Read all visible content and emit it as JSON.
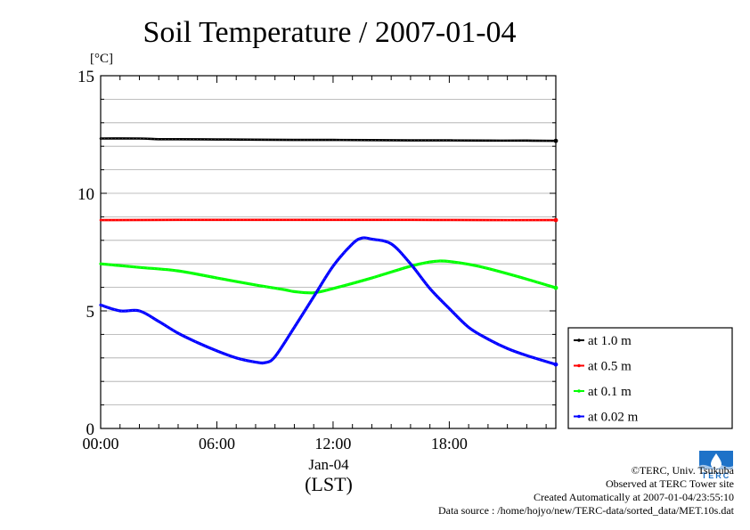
{
  "chart_data": {
    "type": "line",
    "title": "Soil Temperature / 2007-01-04",
    "ylabel": "[°C]",
    "xlabel": "(LST)",
    "date_label": "Jan-04",
    "ylim": [
      0,
      15
    ],
    "xlim": [
      0,
      23.5
    ],
    "yticks": [
      "0",
      "5",
      "10",
      "15"
    ],
    "xticks": [
      {
        "value": 0,
        "label": "00:00"
      },
      {
        "value": 6,
        "label": "06:00"
      },
      {
        "value": 12,
        "label": "12:00"
      },
      {
        "value": 18,
        "label": "18:00"
      }
    ],
    "grid": true,
    "legend_position": "right-bottom",
    "series": [
      {
        "name": "at 1.0 m",
        "color": "#000000",
        "x": [
          0,
          2,
          3,
          4,
          6,
          8,
          10,
          12,
          14,
          16,
          18,
          20,
          22,
          23.5
        ],
        "y": [
          12.33,
          12.33,
          12.3,
          12.3,
          12.29,
          12.28,
          12.27,
          12.27,
          12.26,
          12.25,
          12.25,
          12.24,
          12.24,
          12.23
        ]
      },
      {
        "name": "at 0.5 m",
        "color": "#ff0000",
        "x": [
          0,
          4,
          8,
          12,
          16,
          20,
          23.5
        ],
        "y": [
          8.86,
          8.87,
          8.87,
          8.87,
          8.87,
          8.86,
          8.86
        ]
      },
      {
        "name": "at 0.1 m",
        "color": "#00ff00",
        "x": [
          0,
          2,
          4,
          6,
          8,
          9.5,
          10,
          11,
          12,
          14,
          16,
          17,
          17.5,
          18,
          19,
          20,
          22,
          23.5
        ],
        "y": [
          7.0,
          6.85,
          6.7,
          6.4,
          6.1,
          5.9,
          5.82,
          5.77,
          5.95,
          6.4,
          6.9,
          7.08,
          7.12,
          7.1,
          6.98,
          6.8,
          6.35,
          5.98
        ]
      },
      {
        "name": "at 0.02 m",
        "color": "#0000ff",
        "x": [
          0,
          1,
          2,
          3,
          4,
          5,
          6,
          7,
          8,
          8.5,
          9,
          10,
          11,
          12,
          13,
          13.5,
          14,
          15,
          16,
          17,
          18,
          19,
          20,
          21,
          22,
          23.5
        ],
        "y": [
          5.25,
          5.0,
          5.0,
          4.55,
          4.05,
          3.65,
          3.3,
          3.0,
          2.82,
          2.8,
          3.05,
          4.3,
          5.6,
          6.9,
          7.85,
          8.1,
          8.05,
          7.85,
          7.0,
          5.95,
          5.1,
          4.3,
          3.8,
          3.4,
          3.1,
          2.72
        ]
      }
    ]
  },
  "credits": {
    "copyright": "©TERC, Univ. Tsukuba",
    "observed": "Observed at TERC Tower site",
    "created": "Created Automatically at 2007-01-04/23:55:10",
    "source": "Data source : /home/hojyo/new/TERC-data/sorted_data/MET.10s.dat",
    "logo_text": "TERC"
  }
}
